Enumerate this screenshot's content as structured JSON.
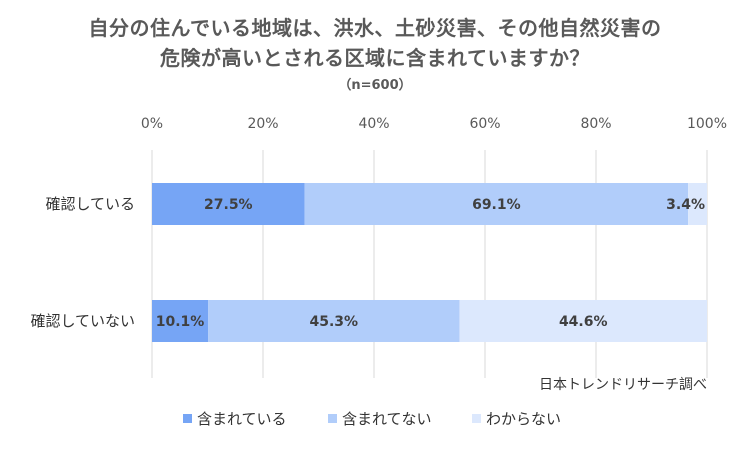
{
  "chart_data": {
    "type": "bar",
    "orientation": "horizontal",
    "stacked": true,
    "title_lines": [
      "自分の住んでいる地域は、洪水、土砂災害、その他自然災害の",
      "危険が高いとされる区域に含まれていますか？"
    ],
    "subtitle": "（n=600）",
    "categories": [
      "確認している",
      "確認していない"
    ],
    "series": [
      {
        "name": "含まれている",
        "color": "#76A5F5",
        "values": [
          27.5,
          10.1
        ]
      },
      {
        "name": "含まれてない",
        "color": "#B1CDFA",
        "values": [
          69.1,
          45.3
        ]
      },
      {
        "name": "わからない",
        "color": "#DCE8FD",
        "values": [
          3.4,
          44.6
        ]
      }
    ],
    "data_labels": [
      [
        "27.5%",
        "10.1%"
      ],
      [
        "69.1%",
        "45.3%"
      ],
      [
        "3.4%",
        "44.6%"
      ]
    ],
    "x_ticks": [
      "0%",
      "20%",
      "40%",
      "60%",
      "80%",
      "100%"
    ],
    "xlim": [
      0,
      100
    ],
    "grid": true,
    "legend_position": "bottom",
    "source_note": "日本トレンドリサーチ調べ"
  }
}
